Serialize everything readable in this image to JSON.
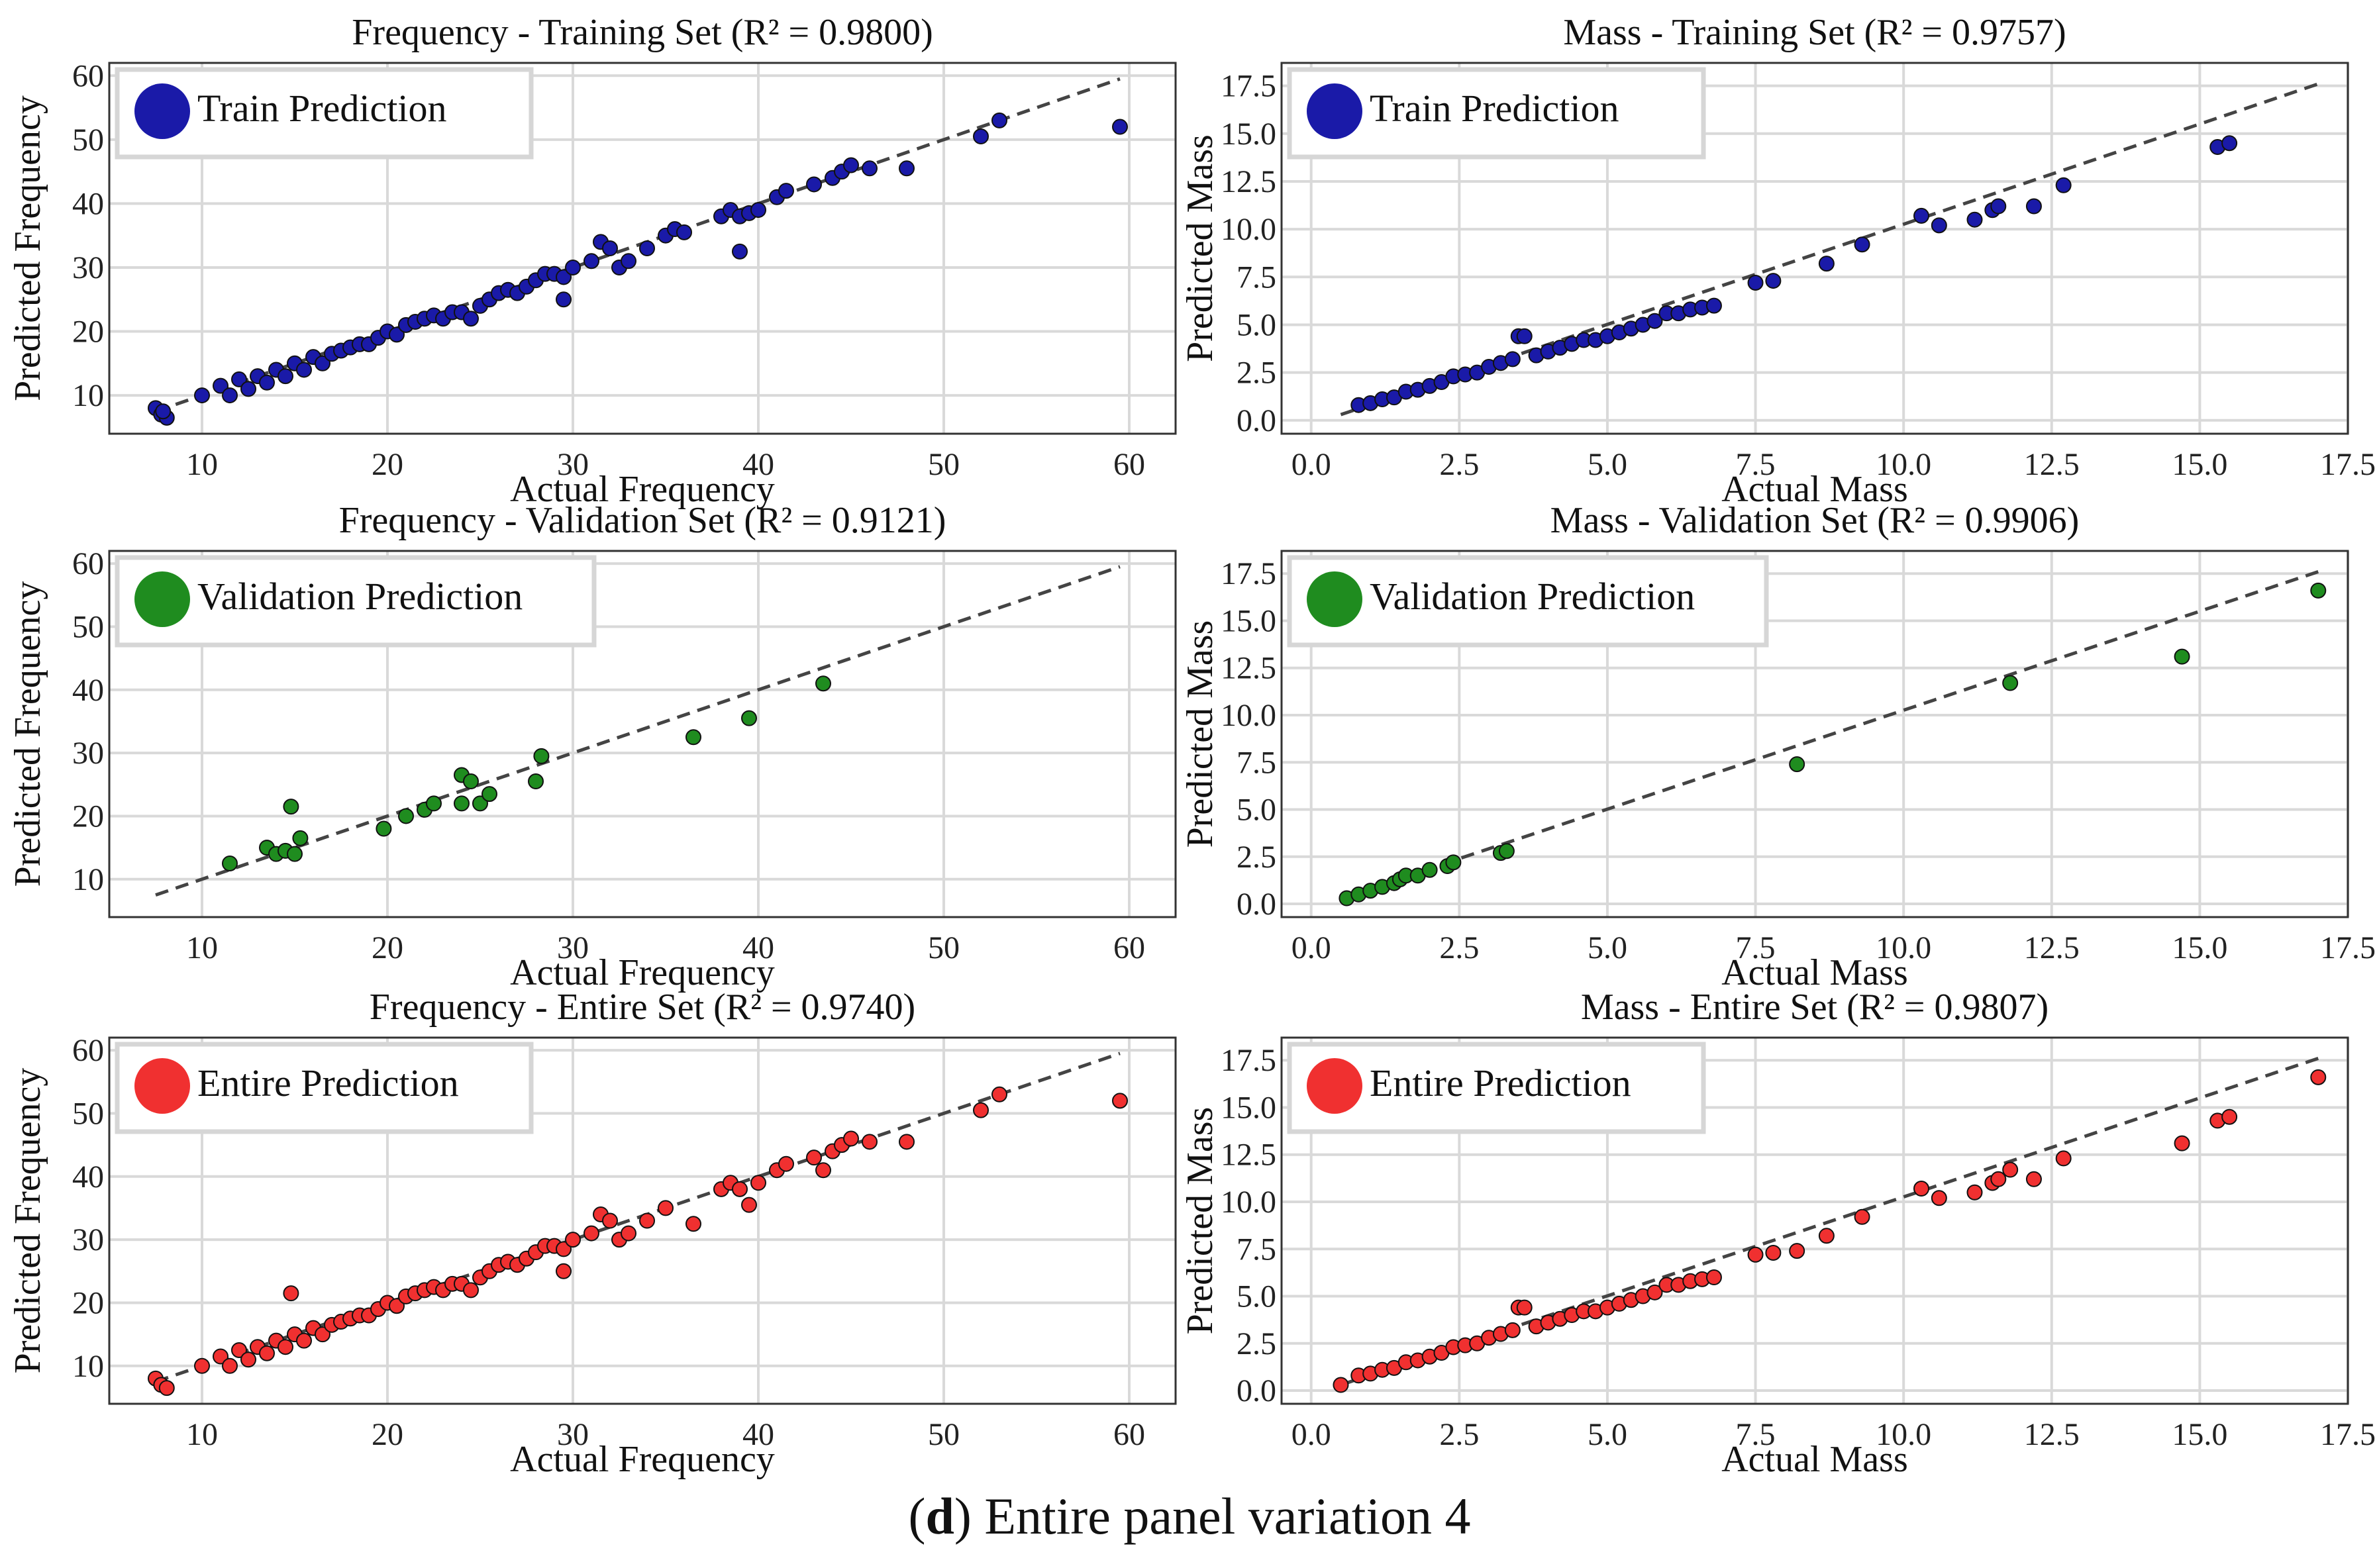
{
  "caption": {
    "open": "(",
    "letter": "d",
    "close": ")",
    "text": " Entire panel variation 4"
  },
  "colors": {
    "train": "#1a1aa8",
    "validation": "#1f8c1f",
    "entire": "#f03030",
    "reference_line": "#444444",
    "grid": "#d9d9d9"
  },
  "chart_data": [
    {
      "id": "freq-train",
      "type": "scatter",
      "title": "Frequency - Training Set (R² = 0.9800)",
      "xlabel": "Actual Frequency",
      "ylabel": "Predicted Frequency",
      "xlim": [
        5,
        62.5
      ],
      "ylim": [
        4,
        62
      ],
      "xticks": [
        10,
        20,
        30,
        40,
        50,
        60
      ],
      "yticks": [
        10,
        20,
        30,
        40,
        50,
        60
      ],
      "xtick_labels": [
        "10",
        "20",
        "30",
        "40",
        "50",
        "60"
      ],
      "ytick_labels": [
        "10",
        "20",
        "30",
        "40",
        "50",
        "60"
      ],
      "legend": {
        "label": "Train Prediction",
        "color": "#1a1aa8",
        "placement": "top-left"
      },
      "reference_line": [
        [
          7.5,
          7.5
        ],
        [
          59.5,
          59.5
        ]
      ],
      "x": [
        7.5,
        7.8,
        8.1,
        7.9,
        10,
        11,
        11.5,
        12,
        12.5,
        13,
        13.5,
        14,
        14.5,
        15,
        15.5,
        16,
        16.5,
        17,
        17.5,
        18,
        18.5,
        19,
        19.5,
        20,
        20.5,
        21,
        21.5,
        22,
        22.5,
        23,
        23.5,
        24,
        24.5,
        25,
        25.5,
        26,
        26.5,
        27,
        27.5,
        28,
        28.5,
        29,
        29.5,
        30,
        31,
        31.5,
        32,
        32.5,
        33,
        34,
        35,
        35.5,
        36,
        38,
        38.5,
        39,
        39.5,
        40,
        41,
        41.5,
        43,
        44,
        44.5,
        45,
        46,
        48,
        52,
        53,
        59.5,
        29.5,
        39
      ],
      "y": [
        8,
        7,
        6.5,
        7.5,
        10,
        11.5,
        10,
        12.5,
        11,
        13,
        12,
        14,
        13,
        15,
        14,
        16,
        15,
        16.5,
        17,
        17.5,
        18,
        18,
        19,
        20,
        19.5,
        21,
        21.5,
        22,
        22.5,
        22,
        23,
        23,
        22,
        24,
        25,
        26,
        26.5,
        26,
        27,
        28,
        29,
        29,
        28.5,
        30,
        31,
        34,
        33,
        30,
        31,
        33,
        35,
        36,
        35.5,
        38,
        39,
        38,
        38.5,
        39,
        41,
        42,
        43,
        44,
        45,
        46,
        45.5,
        45.5,
        50.5,
        53,
        52,
        25,
        32.5
      ]
    },
    {
      "id": "mass-train",
      "type": "scatter",
      "title": "Mass - Training Set (R² = 0.9757)",
      "xlabel": "Actual Mass",
      "ylabel": "Predicted Mass",
      "xlim": [
        -0.5,
        17.5
      ],
      "ylim": [
        -0.7,
        18.7
      ],
      "xticks": [
        0,
        2.5,
        5,
        7.5,
        10,
        12.5,
        15,
        17.5
      ],
      "yticks": [
        0,
        2.5,
        5,
        7.5,
        10,
        12.5,
        15,
        17.5
      ],
      "xtick_labels": [
        "0.0",
        "2.5",
        "5.0",
        "7.5",
        "10.0",
        "12.5",
        "15.0",
        "17.5"
      ],
      "ytick_labels": [
        "0.0",
        "2.5",
        "5.0",
        "7.5",
        "10.0",
        "12.5",
        "15.0",
        "17.5"
      ],
      "legend": {
        "label": "Train Prediction",
        "color": "#1a1aa8",
        "placement": "top-left"
      },
      "reference_line": [
        [
          0.5,
          0.3
        ],
        [
          17.0,
          17.6
        ]
      ],
      "x": [
        0.8,
        1.0,
        1.2,
        1.4,
        1.6,
        1.8,
        2.0,
        2.2,
        2.4,
        2.6,
        2.8,
        3.0,
        3.2,
        3.4,
        3.5,
        3.6,
        3.8,
        4.0,
        4.2,
        4.4,
        4.6,
        4.8,
        5.0,
        5.2,
        5.4,
        5.6,
        5.8,
        6.0,
        6.2,
        6.4,
        6.6,
        6.8,
        7.5,
        7.8,
        8.7,
        9.3,
        10.3,
        10.6,
        11.2,
        11.5,
        11.6,
        12.2,
        12.7,
        15.3,
        15.5
      ],
      "y": [
        0.8,
        0.9,
        1.1,
        1.2,
        1.5,
        1.6,
        1.8,
        2.0,
        2.3,
        2.4,
        2.5,
        2.8,
        3.0,
        3.2,
        4.4,
        4.4,
        3.4,
        3.6,
        3.8,
        4.0,
        4.2,
        4.2,
        4.4,
        4.6,
        4.8,
        5.0,
        5.2,
        5.6,
        5.6,
        5.8,
        5.9,
        6.0,
        7.2,
        7.3,
        8.2,
        9.2,
        10.7,
        10.2,
        10.5,
        11.0,
        11.2,
        11.2,
        12.3,
        14.3,
        14.5
      ]
    },
    {
      "id": "freq-val",
      "type": "scatter",
      "title": "Frequency - Validation Set (R² = 0.9121)",
      "xlabel": "Actual Frequency",
      "ylabel": "Predicted Frequency",
      "xlim": [
        5,
        62.5
      ],
      "ylim": [
        4,
        62
      ],
      "xticks": [
        10,
        20,
        30,
        40,
        50,
        60
      ],
      "yticks": [
        10,
        20,
        30,
        40,
        50,
        60
      ],
      "xtick_labels": [
        "10",
        "20",
        "30",
        "40",
        "50",
        "60"
      ],
      "ytick_labels": [
        "10",
        "20",
        "30",
        "40",
        "50",
        "60"
      ],
      "legend": {
        "label": "Validation Prediction",
        "color": "#1f8c1f",
        "placement": "top-left"
      },
      "reference_line": [
        [
          7.5,
          7.5
        ],
        [
          59.5,
          59.5
        ]
      ],
      "x": [
        11.5,
        13.5,
        14,
        14.5,
        14.8,
        15,
        15.3,
        19.8,
        21,
        22,
        22.5,
        24,
        24,
        24.5,
        25,
        25.5,
        28,
        28.3,
        36.5,
        39.5,
        43.5
      ],
      "y": [
        12.5,
        15,
        14,
        14.5,
        21.5,
        14,
        16.5,
        18,
        20,
        21,
        22,
        26.5,
        22,
        25.5,
        22,
        23.5,
        25.5,
        29.5,
        32.5,
        35.5,
        41
      ]
    },
    {
      "id": "mass-val",
      "type": "scatter",
      "title": "Mass - Validation Set (R² = 0.9906)",
      "xlabel": "Actual Mass",
      "ylabel": "Predicted Mass",
      "xlim": [
        -0.5,
        17.5
      ],
      "ylim": [
        -0.7,
        18.7
      ],
      "xticks": [
        0,
        2.5,
        5,
        7.5,
        10,
        12.5,
        15,
        17.5
      ],
      "yticks": [
        0,
        2.5,
        5,
        7.5,
        10,
        12.5,
        15,
        17.5
      ],
      "xtick_labels": [
        "0.0",
        "2.5",
        "5.0",
        "7.5",
        "10.0",
        "12.5",
        "15.0",
        "17.5"
      ],
      "ytick_labels": [
        "0.0",
        "2.5",
        "5.0",
        "7.5",
        "10.0",
        "12.5",
        "15.0",
        "17.5"
      ],
      "legend": {
        "label": "Validation Prediction",
        "color": "#1f8c1f",
        "placement": "top-left"
      },
      "reference_line": [
        [
          0.5,
          0.3
        ],
        [
          17.0,
          17.6
        ]
      ],
      "x": [
        0.6,
        0.8,
        1.0,
        1.2,
        1.4,
        1.5,
        1.6,
        1.8,
        2.0,
        2.3,
        2.4,
        3.2,
        3.3,
        8.2,
        11.8,
        14.7,
        17.0
      ],
      "y": [
        0.3,
        0.5,
        0.7,
        0.9,
        1.1,
        1.3,
        1.5,
        1.5,
        1.8,
        2.0,
        2.2,
        2.7,
        2.8,
        7.4,
        11.7,
        13.1,
        16.6
      ]
    },
    {
      "id": "freq-all",
      "type": "scatter",
      "title": "Frequency - Entire Set (R² = 0.9740)",
      "xlabel": "Actual Frequency",
      "ylabel": "Predicted Frequency",
      "xlim": [
        5,
        62.5
      ],
      "ylim": [
        4,
        62
      ],
      "xticks": [
        10,
        20,
        30,
        40,
        50,
        60
      ],
      "yticks": [
        10,
        20,
        30,
        40,
        50,
        60
      ],
      "xtick_labels": [
        "10",
        "20",
        "30",
        "40",
        "50",
        "60"
      ],
      "ytick_labels": [
        "10",
        "20",
        "30",
        "40",
        "50",
        "60"
      ],
      "legend": {
        "label": "Entire Prediction",
        "color": "#f03030",
        "placement": "top-left"
      },
      "reference_line": [
        [
          7.5,
          7.5
        ],
        [
          59.5,
          59.5
        ]
      ],
      "x": [
        7.5,
        7.8,
        8.1,
        10,
        11,
        11.5,
        12,
        12.5,
        13,
        13.5,
        14,
        14.5,
        14.8,
        15,
        15.5,
        16,
        16.5,
        17,
        17.5,
        18,
        18.5,
        19,
        19.5,
        20,
        20.5,
        21,
        21.5,
        22,
        22.5,
        23,
        23.5,
        24,
        24.5,
        25,
        25.5,
        26,
        26.5,
        27,
        27.5,
        28,
        28.5,
        29,
        29.5,
        30,
        31,
        31.5,
        32,
        32.5,
        33,
        34,
        35,
        36.5,
        38,
        38.5,
        39,
        39.5,
        40,
        41,
        41.5,
        43,
        43.5,
        44,
        44.5,
        45,
        46,
        48,
        52,
        53,
        59.5,
        29.5
      ],
      "y": [
        8,
        7,
        6.5,
        10,
        11.5,
        10,
        12.5,
        11,
        13,
        12,
        14,
        13,
        21.5,
        15,
        14,
        16,
        15,
        16.5,
        17,
        17.5,
        18,
        18,
        19,
        20,
        19.5,
        21,
        21.5,
        22,
        22.5,
        22,
        23,
        23,
        22,
        24,
        25,
        26,
        26.5,
        26,
        27,
        28,
        29,
        29,
        28.5,
        30,
        31,
        34,
        33,
        30,
        31,
        33,
        35,
        32.5,
        38,
        39,
        38,
        35.5,
        39,
        41,
        42,
        43,
        41,
        44,
        45,
        46,
        45.5,
        45.5,
        50.5,
        53,
        52,
        25
      ]
    },
    {
      "id": "mass-all",
      "type": "scatter",
      "title": "Mass - Entire Set (R² = 0.9807)",
      "xlabel": "Actual Mass",
      "ylabel": "Predicted Mass",
      "xlim": [
        -0.5,
        17.5
      ],
      "ylim": [
        -0.7,
        18.7
      ],
      "xticks": [
        0,
        2.5,
        5,
        7.5,
        10,
        12.5,
        15,
        17.5
      ],
      "yticks": [
        0,
        2.5,
        5,
        7.5,
        10,
        12.5,
        15,
        17.5
      ],
      "xtick_labels": [
        "0.0",
        "2.5",
        "5.0",
        "7.5",
        "10.0",
        "12.5",
        "15.0",
        "17.5"
      ],
      "ytick_labels": [
        "0.0",
        "2.5",
        "5.0",
        "7.5",
        "10.0",
        "12.5",
        "15.0",
        "17.5"
      ],
      "legend": {
        "label": "Entire Prediction",
        "color": "#f03030",
        "placement": "top-left"
      },
      "reference_line": [
        [
          0.5,
          0.3
        ],
        [
          17.0,
          17.6
        ]
      ],
      "x": [
        0.5,
        0.8,
        1.0,
        1.2,
        1.4,
        1.6,
        1.8,
        2.0,
        2.2,
        2.4,
        2.6,
        2.8,
        3.0,
        3.2,
        3.4,
        3.5,
        3.6,
        3.8,
        4.0,
        4.2,
        4.4,
        4.6,
        4.8,
        5.0,
        5.2,
        5.4,
        5.6,
        5.8,
        6.0,
        6.2,
        6.4,
        6.6,
        6.8,
        7.5,
        7.8,
        8.2,
        8.7,
        9.3,
        10.3,
        10.6,
        11.2,
        11.5,
        11.6,
        11.8,
        12.2,
        12.7,
        14.7,
        15.3,
        15.5,
        17.0
      ],
      "y": [
        0.3,
        0.8,
        0.9,
        1.1,
        1.2,
        1.5,
        1.6,
        1.8,
        2.0,
        2.3,
        2.4,
        2.5,
        2.8,
        3.0,
        3.2,
        4.4,
        4.4,
        3.4,
        3.6,
        3.8,
        4.0,
        4.2,
        4.2,
        4.4,
        4.6,
        4.8,
        5.0,
        5.2,
        5.6,
        5.6,
        5.8,
        5.9,
        6.0,
        7.2,
        7.3,
        7.4,
        8.2,
        9.2,
        10.7,
        10.2,
        10.5,
        11.0,
        11.2,
        11.7,
        11.2,
        12.3,
        13.1,
        14.3,
        14.5,
        16.6
      ]
    }
  ]
}
